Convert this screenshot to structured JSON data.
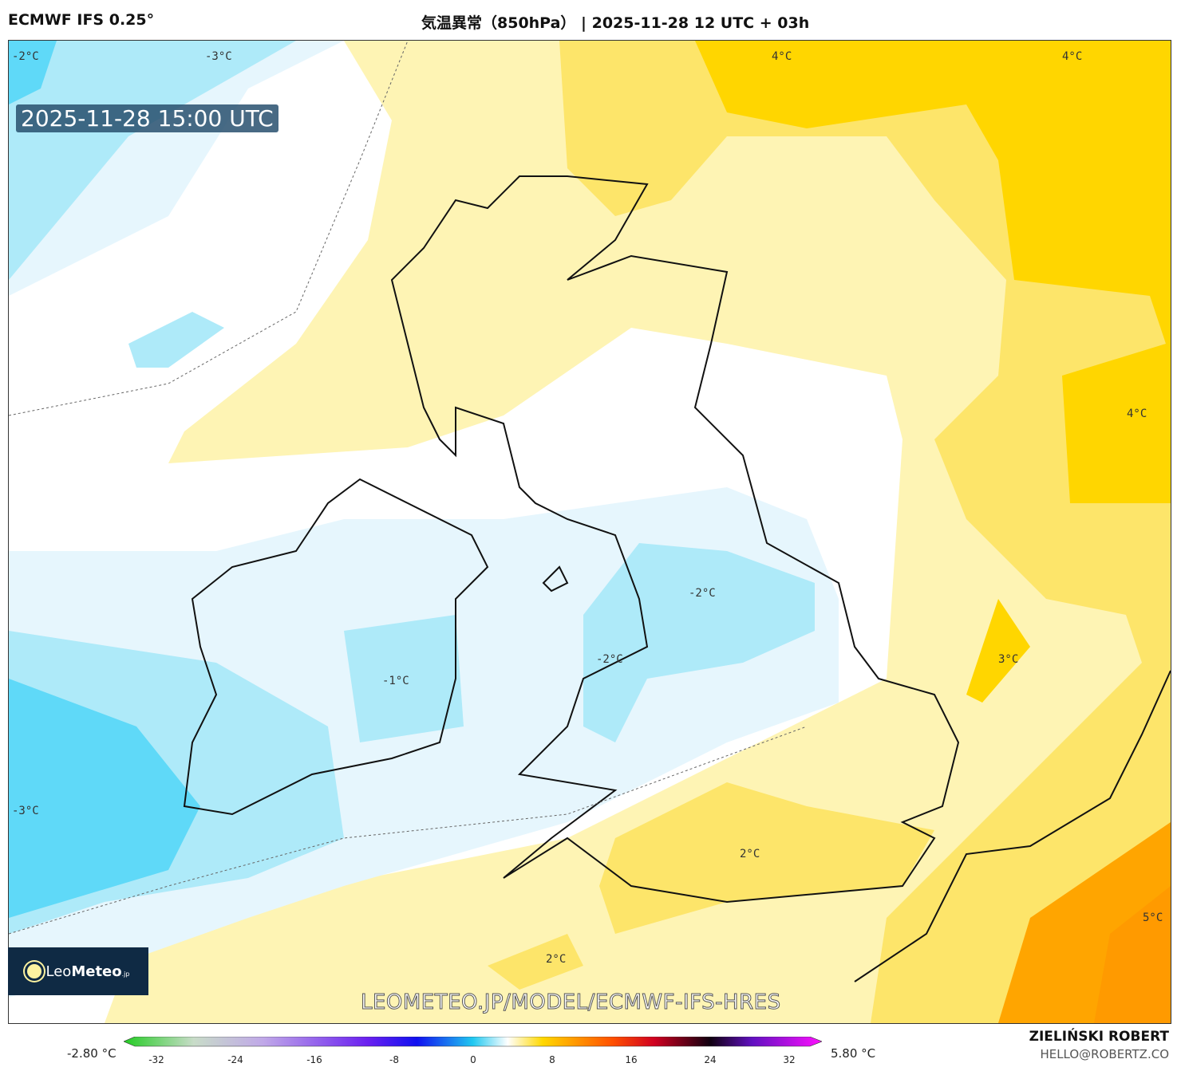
{
  "header": {
    "model": "ECMWF IFS 0.25°",
    "title": "気温異常（850hPa） | 2025-11-28 12 UTC + 03h"
  },
  "map": {
    "valid_time": "2025-11-28 15:00 UTC",
    "watermark": "LEOMETEO.JP/MODEL/ECMWF-IFS-HRES",
    "logo": {
      "text_light": "Leo",
      "text_bold": "Meteo",
      "suffix": ".jp"
    },
    "contour_labels": [
      "-2°C",
      "-3°C",
      "4°C",
      "4°C",
      "4°C",
      "-2°C",
      "-1°C",
      "-2°C",
      "3°C",
      "-3°C",
      "2°C",
      "2°C",
      "5°C"
    ],
    "colors": {
      "minus3": "#5fd9f8",
      "minus2": "#aeeaf9",
      "minus1": "#e6f6fd",
      "zero": "#ffffff",
      "plus1": "#fef4b4",
      "plus2": "#fde56a",
      "plus3": "#ffd600",
      "plus4": "#ffc000",
      "plus5": "#ff9f00"
    }
  },
  "colorbar": {
    "min_label": "-2.80 °C",
    "max_label": "5.80 °C",
    "ticks": [
      "-32",
      "-24",
      "-16",
      "-8",
      "0",
      "8",
      "16",
      "24",
      "32"
    ]
  },
  "credits": {
    "author": "ZIELIŃSKI ROBERT",
    "email": "HELLO@ROBERTZ.CO"
  }
}
